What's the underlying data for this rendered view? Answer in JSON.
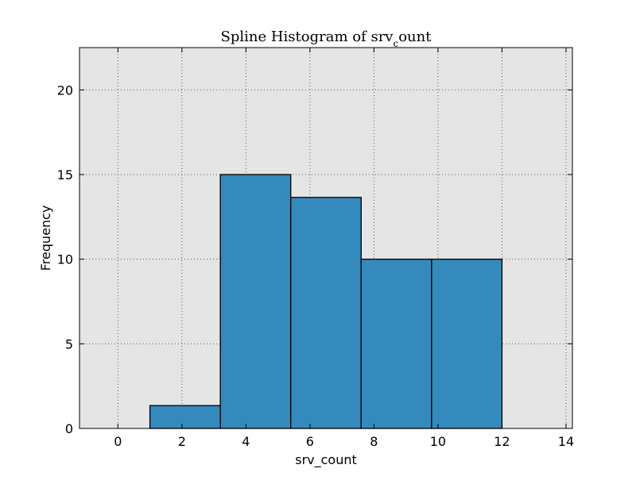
{
  "chart_data": {
    "type": "bar",
    "title": "Spline Histogram of srv",
    "title_subscript": "c",
    "title_suffix": "ount",
    "xlabel": "srv_count",
    "ylabel": "Frequency",
    "xlim": [
      -1.2,
      14.2
    ],
    "ylim": [
      0,
      22.5
    ],
    "xticks": [
      0,
      2,
      4,
      6,
      8,
      10,
      12,
      14
    ],
    "yticks": [
      0,
      5,
      10,
      15,
      20
    ],
    "grid": true,
    "bins": [
      {
        "x0": 1.0,
        "x1": 3.2,
        "value": 1.35
      },
      {
        "x0": 3.2,
        "x1": 5.4,
        "value": 15.0
      },
      {
        "x0": 5.4,
        "x1": 7.6,
        "value": 13.65
      },
      {
        "x0": 7.6,
        "x1": 9.8,
        "value": 10.0
      },
      {
        "x0": 9.8,
        "x1": 12.0,
        "value": 10.0
      }
    ],
    "colors": {
      "bar_fill": "#348abd",
      "bar_edge": "#000000",
      "plot_background": "#e5e5e5",
      "grid": "#555555"
    }
  }
}
